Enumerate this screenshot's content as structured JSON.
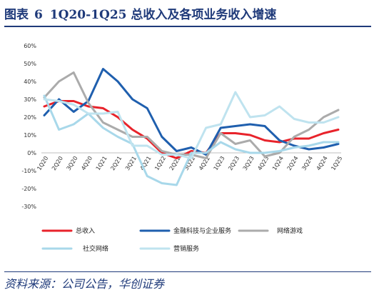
{
  "header": {
    "prefix": "图表",
    "number": "6",
    "text": "1Q20-1Q25 总收入及各项业务收入增速"
  },
  "footer": {
    "source": "资料来源：公司公告，华创证券"
  },
  "colors": {
    "总收入": "#e8232b",
    "金融科技与企业服务": "#1f5fae",
    "网络游戏": "#ababab",
    "社交网络": "#a8d8ea",
    "营销服务": "#bfe3ef"
  },
  "chart_data": {
    "type": "line",
    "title": "",
    "xlabel": "",
    "ylabel": "",
    "ylim": [
      -0.3,
      0.6
    ],
    "yticks": [
      -0.3,
      -0.2,
      -0.1,
      0.0,
      0.1,
      0.2,
      0.3,
      0.4,
      0.5,
      0.6
    ],
    "ytick_labels": [
      "-30%",
      "-20%",
      "-10%",
      "0%",
      "10%",
      "20%",
      "30%",
      "40%",
      "50%",
      "60%"
    ],
    "grid": false,
    "legend_position": "bottom",
    "categories": [
      "1Q20",
      "2Q20",
      "3Q20",
      "4Q20",
      "1Q21",
      "2Q21",
      "3Q21",
      "4Q21",
      "1Q22",
      "2Q22",
      "3Q22",
      "4Q22",
      "1Q23",
      "2Q23",
      "3Q23",
      "4Q23",
      "1Q24",
      "2Q24",
      "3Q24",
      "4Q24",
      "1Q25"
    ],
    "series": [
      {
        "name": "总收入",
        "values": [
          0.26,
          0.29,
          0.29,
          0.26,
          0.25,
          0.2,
          0.13,
          0.08,
          0.0,
          -0.03,
          0.01,
          0.0,
          0.11,
          0.11,
          0.1,
          0.07,
          0.06,
          0.08,
          0.08,
          0.11,
          0.13
        ]
      },
      {
        "name": "金融科技与企业服务",
        "values": [
          0.21,
          0.3,
          0.23,
          0.29,
          0.47,
          0.4,
          0.3,
          0.25,
          0.09,
          0.01,
          0.03,
          -0.01,
          0.14,
          0.15,
          0.16,
          0.15,
          0.07,
          0.04,
          0.02,
          0.03,
          0.05
        ]
      },
      {
        "name": "网络游戏",
        "values": [
          0.31,
          0.4,
          0.45,
          0.28,
          0.17,
          0.13,
          0.09,
          0.09,
          0.01,
          -0.01,
          -0.01,
          -0.03,
          0.11,
          0.05,
          0.07,
          -0.02,
          0.0,
          0.09,
          0.13,
          0.2,
          0.24
        ]
      },
      {
        "name": "社交网络",
        "values": [
          0.32,
          0.13,
          0.16,
          0.22,
          0.14,
          0.09,
          0.05,
          -0.13,
          -0.17,
          -0.18,
          0.0,
          0.0,
          0.06,
          0.02,
          0.0,
          0.0,
          0.01,
          0.03,
          0.04,
          0.06,
          0.06
        ]
      },
      {
        "name": "营销服务",
        "values": [
          0.3,
          0.29,
          0.27,
          0.22,
          0.22,
          0.23,
          0.04,
          0.04,
          -0.01,
          -0.01,
          -0.03,
          0.14,
          0.16,
          0.34,
          0.2,
          0.21,
          0.26,
          0.19,
          0.17,
          0.17,
          0.2
        ]
      }
    ]
  }
}
